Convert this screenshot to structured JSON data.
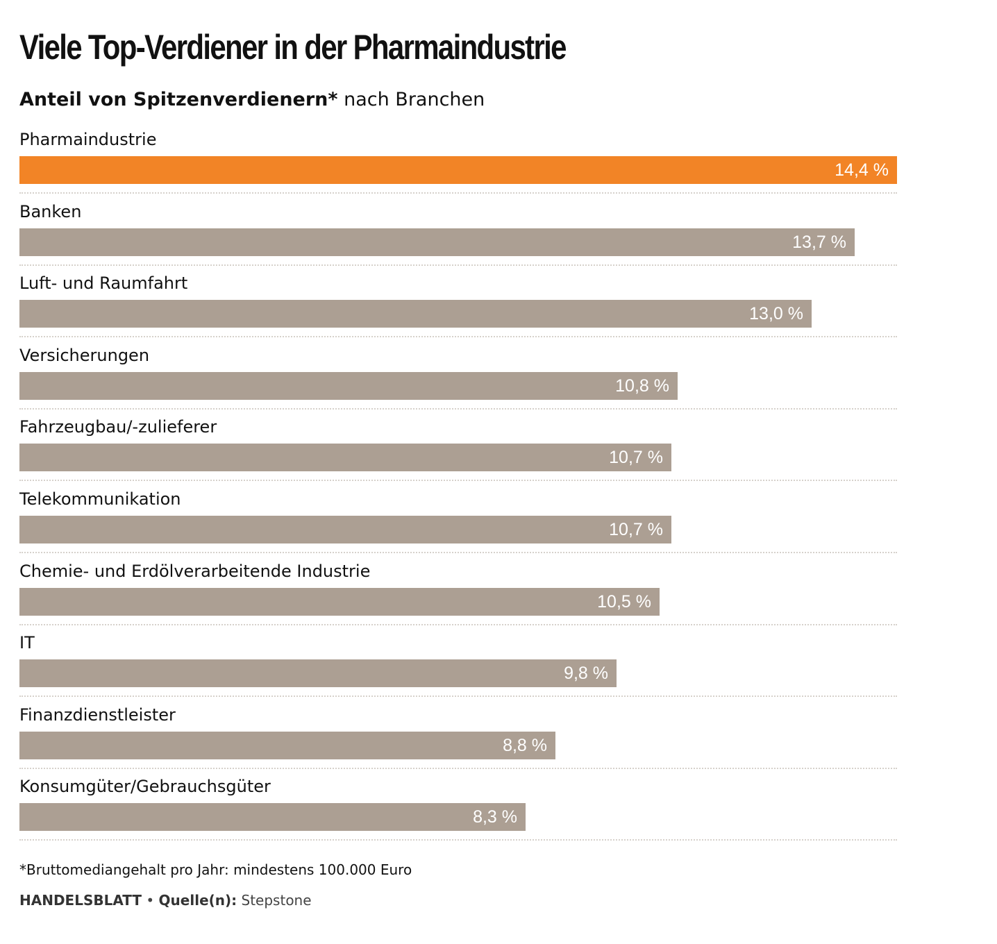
{
  "title": "Viele Top-Verdiener in der Pharmaindustrie",
  "subtitle": {
    "bold": "Anteil von Spitzenverdienern*",
    "normal": "nach Branchen"
  },
  "colors": {
    "highlight": "#f28426",
    "default": "#ac9f93"
  },
  "chart_data": {
    "type": "bar",
    "orientation": "horizontal",
    "categories": [
      "Pharmaindustrie",
      "Banken",
      "Luft- und Raumfahrt",
      "Versicherungen",
      "Fahrzeugbau/-zulieferer",
      "Telekommunikation",
      "Chemie- und Erdölverarbeitende Industrie",
      "IT",
      "Finanzdienstleister",
      "Konsumgüter/Gebrauchsgüter"
    ],
    "values": [
      14.4,
      13.7,
      13.0,
      10.8,
      10.7,
      10.7,
      10.5,
      9.8,
      8.8,
      8.3
    ],
    "value_labels": [
      "14,4 %",
      "13,7 %",
      "13,0 %",
      "10,8 %",
      "10,7 %",
      "10,7 %",
      "10,5 %",
      "9,8 %",
      "8,8 %",
      "8,3 %"
    ],
    "highlighted": [
      "Pharmaindustrie"
    ],
    "unit": "%",
    "xlim": [
      0,
      14.4
    ],
    "grid": false,
    "legend": "none"
  },
  "footnote": "*Bruttomediangehalt pro Jahr: mindestens 100.000 Euro",
  "credit": {
    "publisher": "HANDELSBLATT",
    "separator": "•",
    "source_label": "Quelle(n):",
    "source": "Stepstone"
  }
}
